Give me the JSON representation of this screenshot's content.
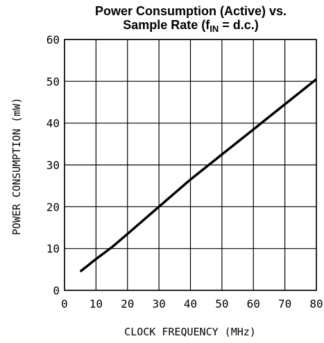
{
  "chart_data": {
    "type": "line",
    "title_line1": "Power Consumption (Active) vs.",
    "title_line2_prefix": "Sample Rate (f",
    "title_line2_subscript": "IN",
    "title_line2_suffix": " = d.c.)",
    "xlabel": "CLOCK FREQUENCY (MHz)",
    "ylabel": "POWER CONSUMPTION (mW)",
    "xlim": [
      0,
      80
    ],
    "ylim": [
      0,
      60
    ],
    "xticks": [
      "0",
      "10",
      "20",
      "30",
      "40",
      "50",
      "60",
      "70",
      "80"
    ],
    "yticks": [
      "0",
      "10",
      "20",
      "30",
      "40",
      "50",
      "60"
    ],
    "grid": true,
    "series": [
      {
        "x": [
          5,
          10,
          15,
          20,
          30,
          40,
          50,
          60,
          70,
          80
        ],
        "y": [
          4.5,
          7.5,
          10.3,
          13.5,
          20,
          26.5,
          32.5,
          38.5,
          44.5,
          50.5
        ],
        "color": "#000000"
      }
    ]
  }
}
